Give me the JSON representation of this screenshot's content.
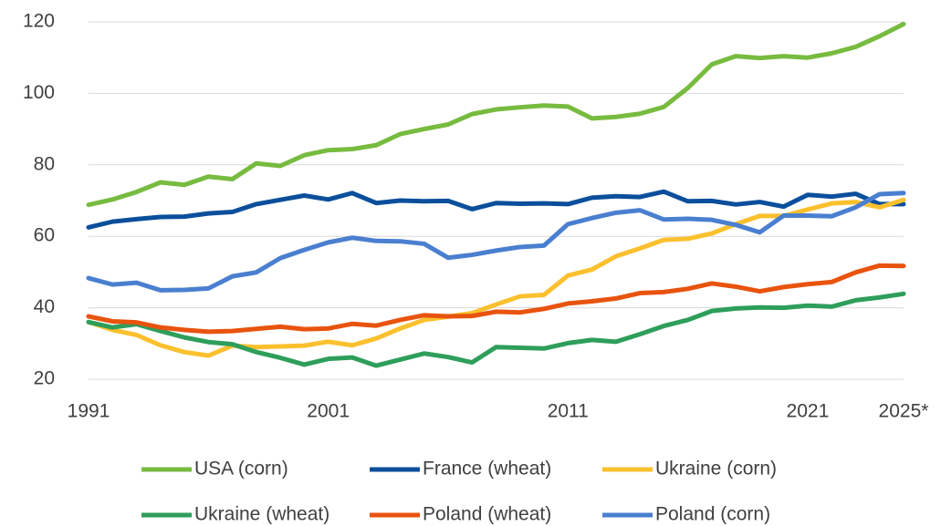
{
  "chart_data": {
    "type": "line",
    "categories": [
      "1991",
      null,
      null,
      null,
      null,
      null,
      null,
      null,
      null,
      null,
      "2001",
      null,
      null,
      null,
      null,
      null,
      null,
      null,
      null,
      null,
      "2011",
      null,
      null,
      null,
      null,
      null,
      null,
      null,
      null,
      null,
      "2021",
      null,
      null,
      null,
      "2025*"
    ],
    "series": [
      {
        "name": "USA (corn)",
        "color": "#77bb3f",
        "values": [
          68.8,
          70.3,
          72.4,
          75.1,
          74.4,
          76.7,
          76.0,
          80.4,
          79.7,
          82.7,
          84.1,
          84.4,
          85.5,
          88.6,
          90.0,
          91.3,
          94.2,
          95.5,
          96.1,
          96.6,
          96.3,
          93.0,
          93.4,
          94.3,
          96.2,
          101.5,
          108.1,
          110.4,
          109.9,
          110.4,
          110.0,
          111.2,
          113.0,
          116.0,
          119.4
        ]
      },
      {
        "name": "France (wheat)",
        "color": "#0b4f9c",
        "values": [
          62.5,
          64.1,
          64.8,
          65.4,
          65.5,
          66.4,
          66.8,
          69.0,
          70.2,
          71.4,
          70.3,
          72.1,
          69.3,
          70.0,
          69.8,
          69.9,
          67.6,
          69.3,
          69.1,
          69.2,
          69.0,
          70.8,
          71.2,
          71.0,
          72.5,
          69.8,
          69.9,
          68.9,
          69.6,
          68.3,
          71.6,
          71.1,
          71.9,
          69.0,
          69.0
        ]
      },
      {
        "name": "Ukraine (corn)",
        "color": "#fbc02d",
        "values": [
          36.0,
          33.8,
          32.4,
          29.5,
          27.6,
          26.6,
          29.4,
          29.0,
          29.2,
          29.4,
          30.5,
          29.5,
          31.4,
          34.2,
          36.6,
          37.5,
          38.5,
          40.9,
          43.2,
          43.6,
          49.0,
          50.7,
          54.4,
          56.6,
          59.0,
          59.3,
          60.8,
          63.4,
          65.7,
          65.7,
          67.5,
          69.2,
          69.6,
          68.1,
          70.2
        ]
      },
      {
        "name": "Ukraine (wheat)",
        "color": "#2e9e5b",
        "values": [
          36.0,
          34.5,
          35.4,
          33.5,
          31.7,
          30.4,
          29.8,
          27.6,
          26.0,
          24.1,
          25.7,
          26.1,
          23.8,
          25.5,
          27.2,
          26.2,
          24.7,
          29.0,
          28.8,
          28.6,
          30.1,
          31.0,
          30.5,
          32.6,
          34.9,
          36.6,
          39.1,
          39.8,
          40.1,
          40.0,
          40.6,
          40.3,
          42.1,
          42.9,
          43.9
        ]
      },
      {
        "name": "Poland (wheat)",
        "color": "#e8530e",
        "values": [
          37.6,
          36.2,
          35.9,
          34.5,
          33.8,
          33.3,
          33.5,
          34.1,
          34.7,
          34.0,
          34.2,
          35.5,
          35.0,
          36.6,
          37.9,
          37.6,
          37.7,
          38.9,
          38.7,
          39.7,
          41.2,
          41.8,
          42.6,
          44.1,
          44.4,
          45.3,
          46.8,
          45.9,
          44.6,
          45.8,
          46.6,
          47.2,
          49.9,
          51.8,
          51.7
        ]
      },
      {
        "name": "Poland (corn)",
        "color": "#4a7fd0",
        "values": [
          48.3,
          46.5,
          47.0,
          44.9,
          45.0,
          45.4,
          48.8,
          49.9,
          53.9,
          56.2,
          58.3,
          59.6,
          58.7,
          58.6,
          57.9,
          54.0,
          54.8,
          56.0,
          57.0,
          57.4,
          63.4,
          65.1,
          66.6,
          67.3,
          64.7,
          64.9,
          64.6,
          63.2,
          61.1,
          65.8,
          65.8,
          65.6,
          68.1,
          71.8,
          72.1
        ]
      }
    ],
    "ylim": [
      20,
      120
    ],
    "yticks": [
      20,
      40,
      60,
      80,
      100,
      120
    ],
    "grid": true,
    "legend": "bottom"
  }
}
